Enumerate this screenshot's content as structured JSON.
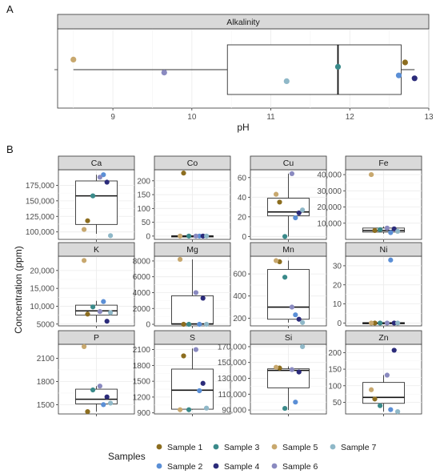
{
  "panel_labels": {
    "a": "A",
    "b": "B"
  },
  "legend": {
    "title": "Samples",
    "items": [
      {
        "label": "Sample 1",
        "color": "#8c6d1f"
      },
      {
        "label": "Sample 2",
        "color": "#5b8fd6"
      },
      {
        "label": "Sample 3",
        "color": "#3a8a8a"
      },
      {
        "label": "Sample 4",
        "color": "#2b2b7a"
      },
      {
        "label": "Sample 5",
        "color": "#c8a86e"
      },
      {
        "label": "Sample 6",
        "color": "#8a8ac0"
      },
      {
        "label": "Sample 7",
        "color": "#8fb8c8"
      }
    ]
  },
  "chart_data": [
    {
      "type": "boxplot",
      "panel": "A",
      "title": "Alkalinity",
      "xlabel": "pH",
      "xlim": [
        8.3,
        13.0
      ],
      "xticks": [
        9,
        10,
        11,
        12,
        13
      ],
      "box": {
        "whisker_low": 8.5,
        "q1": 10.45,
        "median": 11.85,
        "q3": 12.65,
        "whisker_high": 12.82
      },
      "points": [
        {
          "sample": "Sample 1",
          "value": 12.7
        },
        {
          "sample": "Sample 2",
          "value": 12.62
        },
        {
          "sample": "Sample 3",
          "value": 11.85
        },
        {
          "sample": "Sample 4",
          "value": 12.82
        },
        {
          "sample": "Sample 5",
          "value": 8.5
        },
        {
          "sample": "Sample 6",
          "value": 9.65
        },
        {
          "sample": "Sample 7",
          "value": 11.2
        }
      ]
    },
    {
      "type": "boxplot",
      "panel": "B",
      "ylabel": "Concentration (ppm)",
      "xlabel": "",
      "facets": [
        {
          "name": "Ca",
          "ylim": [
            88000,
            200000
          ],
          "yticks": [
            "100,000",
            "125,000",
            "150,000",
            "175,000"
          ],
          "ytick_values": [
            100000,
            125000,
            150000,
            175000
          ],
          "box": {
            "low": 97000,
            "q1": 112000,
            "median": 158000,
            "q3": 182000,
            "high": 192000
          },
          "points": [
            {
              "sample": "Sample 1",
              "value": 118000
            },
            {
              "sample": "Sample 2",
              "value": 192000
            },
            {
              "sample": "Sample 3",
              "value": 158000
            },
            {
              "sample": "Sample 4",
              "value": 180000
            },
            {
              "sample": "Sample 5",
              "value": 104000
            },
            {
              "sample": "Sample 6",
              "value": 188000
            },
            {
              "sample": "Sample 7",
              "value": 94000
            }
          ]
        },
        {
          "name": "Co",
          "ylim": [
            -12,
            240
          ],
          "yticks": [
            "0",
            "50",
            "100",
            "150",
            "200"
          ],
          "ytick_values": [
            0,
            50,
            100,
            150,
            200
          ],
          "box": {
            "low": 0,
            "q1": 0,
            "median": 0,
            "q3": 1,
            "high": 1
          },
          "points": [
            {
              "sample": "Sample 1",
              "value": 228
            },
            {
              "sample": "Sample 2",
              "value": 0
            },
            {
              "sample": "Sample 3",
              "value": 0
            },
            {
              "sample": "Sample 4",
              "value": 0
            },
            {
              "sample": "Sample 5",
              "value": 0
            },
            {
              "sample": "Sample 6",
              "value": 0
            },
            {
              "sample": "Sample 7",
              "value": 0
            }
          ]
        },
        {
          "name": "Cu",
          "ylim": [
            -3,
            68
          ],
          "yticks": [
            "0",
            "20",
            "40",
            "60"
          ],
          "ytick_values": [
            0,
            20,
            40,
            60
          ],
          "box": {
            "low": 0,
            "q1": 21,
            "median": 25,
            "q3": 39,
            "high": 64
          },
          "points": [
            {
              "sample": "Sample 1",
              "value": 35
            },
            {
              "sample": "Sample 2",
              "value": 19
            },
            {
              "sample": "Sample 3",
              "value": 0
            },
            {
              "sample": "Sample 4",
              "value": 24
            },
            {
              "sample": "Sample 5",
              "value": 43
            },
            {
              "sample": "Sample 6",
              "value": 64
            },
            {
              "sample": "Sample 7",
              "value": 27
            }
          ]
        },
        {
          "name": "Fe",
          "ylim": [
            0,
            43000
          ],
          "yticks": [
            "10,000",
            "20,000",
            "30,000",
            "40,000"
          ],
          "ytick_values": [
            10000,
            20000,
            30000,
            40000
          ],
          "box": {
            "low": 3500,
            "q1": 4500,
            "median": 5500,
            "q3": 7000,
            "high": 8000
          },
          "points": [
            {
              "sample": "Sample 1",
              "value": 5500
            },
            {
              "sample": "Sample 2",
              "value": 4200
            },
            {
              "sample": "Sample 3",
              "value": 6000
            },
            {
              "sample": "Sample 4",
              "value": 6500
            },
            {
              "sample": "Sample 5",
              "value": 40000
            },
            {
              "sample": "Sample 6",
              "value": 7000
            },
            {
              "sample": "Sample 7",
              "value": 5000
            }
          ]
        },
        {
          "name": "K",
          "ylim": [
            4500,
            24000
          ],
          "yticks": [
            "5000",
            "10,000",
            "15,000",
            "20,000"
          ],
          "ytick_values": [
            5000,
            10000,
            15000,
            20000
          ],
          "box": {
            "low": 5500,
            "q1": 7500,
            "median": 8700,
            "q3": 10300,
            "high": 11500
          },
          "points": [
            {
              "sample": "Sample 1",
              "value": 7800
            },
            {
              "sample": "Sample 2",
              "value": 11300
            },
            {
              "sample": "Sample 3",
              "value": 9800
            },
            {
              "sample": "Sample 4",
              "value": 5800
            },
            {
              "sample": "Sample 5",
              "value": 22800
            },
            {
              "sample": "Sample 6",
              "value": 8500
            },
            {
              "sample": "Sample 7",
              "value": 8200
            }
          ]
        },
        {
          "name": "Mg",
          "ylim": [
            -200,
            8600
          ],
          "yticks": [
            "0",
            "2000",
            "4000",
            "6000",
            "8000"
          ],
          "ytick_values": [
            0,
            2000,
            4000,
            6000,
            8000
          ],
          "box": {
            "low": 0,
            "q1": 0,
            "median": 50,
            "q3": 3600,
            "high": 8200
          },
          "points": [
            {
              "sample": "Sample 1",
              "value": 0
            },
            {
              "sample": "Sample 2",
              "value": 0
            },
            {
              "sample": "Sample 3",
              "value": 0
            },
            {
              "sample": "Sample 4",
              "value": 3300
            },
            {
              "sample": "Sample 5",
              "value": 8200
            },
            {
              "sample": "Sample 6",
              "value": 4000
            },
            {
              "sample": "Sample 7",
              "value": 0
            }
          ]
        },
        {
          "name": "Mn",
          "ylim": [
            130,
            760
          ],
          "yticks": [
            "200",
            "400",
            "600"
          ],
          "ytick_values": [
            200,
            400,
            600
          ],
          "box": {
            "low": 160,
            "q1": 190,
            "median": 300,
            "q3": 640,
            "high": 720
          },
          "points": [
            {
              "sample": "Sample 1",
              "value": 710
            },
            {
              "sample": "Sample 2",
              "value": 230
            },
            {
              "sample": "Sample 3",
              "value": 570
            },
            {
              "sample": "Sample 4",
              "value": 190
            },
            {
              "sample": "Sample 5",
              "value": 720
            },
            {
              "sample": "Sample 6",
              "value": 300
            },
            {
              "sample": "Sample 7",
              "value": 160
            }
          ]
        },
        {
          "name": "Ni",
          "ylim": [
            -1.5,
            35
          ],
          "yticks": [
            "0",
            "10",
            "20",
            "30"
          ],
          "ytick_values": [
            0,
            10,
            20,
            30
          ],
          "box": {
            "low": 0,
            "q1": 0,
            "median": 0,
            "q3": 0.2,
            "high": 0.2
          },
          "points": [
            {
              "sample": "Sample 1",
              "value": 0
            },
            {
              "sample": "Sample 2",
              "value": 33
            },
            {
              "sample": "Sample 3",
              "value": 0
            },
            {
              "sample": "Sample 4",
              "value": 0
            },
            {
              "sample": "Sample 5",
              "value": 0
            },
            {
              "sample": "Sample 6",
              "value": 0
            },
            {
              "sample": "Sample 7",
              "value": 0
            }
          ]
        },
        {
          "name": "P",
          "ylim": [
            1380,
            2280
          ],
          "yticks": [
            "1500",
            "1800",
            "2100"
          ],
          "ytick_values": [
            1500,
            1800,
            2100
          ],
          "box": {
            "low": 1410,
            "q1": 1510,
            "median": 1570,
            "q3": 1700,
            "high": 1740
          },
          "points": [
            {
              "sample": "Sample 1",
              "value": 1410
            },
            {
              "sample": "Sample 2",
              "value": 1500
            },
            {
              "sample": "Sample 3",
              "value": 1690
            },
            {
              "sample": "Sample 4",
              "value": 1600
            },
            {
              "sample": "Sample 5",
              "value": 2250
            },
            {
              "sample": "Sample 6",
              "value": 1740
            },
            {
              "sample": "Sample 7",
              "value": 1520
            }
          ]
        },
        {
          "name": "S",
          "ylim": [
            880,
            2200
          ],
          "yticks": [
            "900",
            "1200",
            "1500",
            "1800",
            "2100"
          ],
          "ytick_values": [
            900,
            1200,
            1500,
            1800,
            2100
          ],
          "box": {
            "low": 960,
            "q1": 970,
            "median": 1330,
            "q3": 1730,
            "high": 2120
          },
          "points": [
            {
              "sample": "Sample 1",
              "value": 1980
            },
            {
              "sample": "Sample 2",
              "value": 1320
            },
            {
              "sample": "Sample 3",
              "value": 960
            },
            {
              "sample": "Sample 4",
              "value": 1460
            },
            {
              "sample": "Sample 5",
              "value": 960
            },
            {
              "sample": "Sample 6",
              "value": 2100
            },
            {
              "sample": "Sample 7",
              "value": 990
            }
          ]
        },
        {
          "name": "Si",
          "ylim": [
            85000,
            173000
          ],
          "yticks": [
            "90,000",
            "110,000",
            "130,000",
            "150,000",
            "170,000"
          ],
          "ytick_values": [
            90000,
            110000,
            130000,
            150000,
            170000
          ],
          "box": {
            "low": 90000,
            "q1": 118000,
            "median": 140000,
            "q3": 142000,
            "high": 145000
          },
          "points": [
            {
              "sample": "Sample 1",
              "value": 143000
            },
            {
              "sample": "Sample 2",
              "value": 100000
            },
            {
              "sample": "Sample 3",
              "value": 92000
            },
            {
              "sample": "Sample 4",
              "value": 138000
            },
            {
              "sample": "Sample 5",
              "value": 144000
            },
            {
              "sample": "Sample 6",
              "value": 141000
            },
            {
              "sample": "Sample 7",
              "value": 170000
            }
          ]
        },
        {
          "name": "Zn",
          "ylim": [
            15,
            225
          ],
          "yticks": [
            "50",
            "100",
            "150",
            "200"
          ],
          "ytick_values": [
            50,
            100,
            150,
            200
          ],
          "box": {
            "low": 22,
            "q1": 47,
            "median": 65,
            "q3": 110,
            "high": 132
          },
          "points": [
            {
              "sample": "Sample 1",
              "value": 60
            },
            {
              "sample": "Sample 2",
              "value": 28
            },
            {
              "sample": "Sample 3",
              "value": 40
            },
            {
              "sample": "Sample 4",
              "value": 207
            },
            {
              "sample": "Sample 5",
              "value": 88
            },
            {
              "sample": "Sample 6",
              "value": 132
            },
            {
              "sample": "Sample 7",
              "value": 22
            }
          ]
        }
      ]
    }
  ]
}
